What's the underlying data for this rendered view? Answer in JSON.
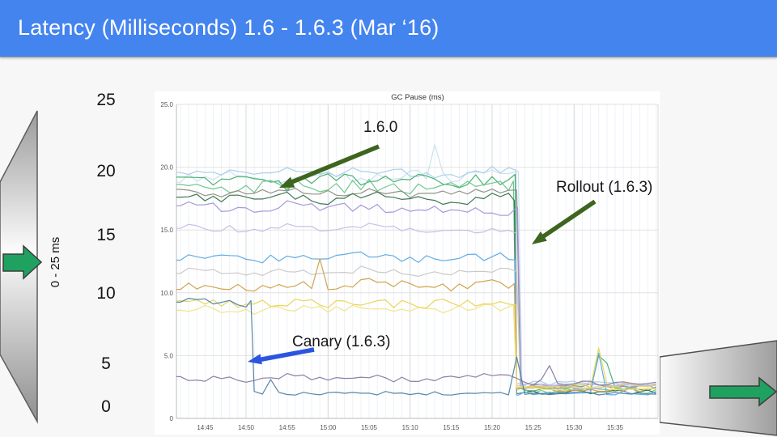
{
  "slide": {
    "title": "Latency (Milliseconds) 1.6 - 1.6.3 (Mar ‘16)"
  },
  "colors": {
    "header_bg": "#4484ef",
    "header_text": "#ffffff",
    "annotation_green": "#3e651f",
    "annotation_blue": "#2b55e0",
    "shape_arrow_green": "#1fa260",
    "shape_arrow_border": "#3c3c3c"
  },
  "scale": {
    "rotated_label": "0 - 25 ms",
    "labels": [
      "25",
      "20",
      "15",
      "10",
      "5",
      "0"
    ]
  },
  "annotations": {
    "v160": "1.6.0",
    "rollout": "Rollout (1.6.3)",
    "canary": "Canary (1.6.3)"
  },
  "chart_data": {
    "type": "line",
    "title": "GC Pause (ms)",
    "xlabel": "",
    "ylabel": "",
    "ylim": [
      0,
      25
    ],
    "grid": true,
    "legend": "none",
    "x_ticks": [
      "14:45",
      "14:50",
      "14:55",
      "15:00",
      "15:05",
      "15:10",
      "15:15",
      "15:20",
      "15:25",
      "15:30",
      "15:35"
    ],
    "x_tick_minutes": [
      3,
      8,
      13,
      18,
      23,
      28,
      33,
      38,
      43,
      48,
      53
    ],
    "y_ticks": [
      "25.0",
      "20.0",
      "15.0",
      "10.0",
      "5.0",
      "0"
    ],
    "y_tick_values": [
      25,
      20,
      15,
      10,
      5,
      0
    ],
    "events": {
      "canary_drop_time": "14:51",
      "rollout_drop_time": "15:23"
    },
    "series": [
      {
        "name": "pale-blue-1",
        "color": "#c9dfef",
        "values": [
          19.2,
          19.5,
          18.9,
          19.4,
          19.0,
          19.6,
          19.2,
          19.4,
          2.6,
          2.5,
          2.6
        ],
        "drop_t": 41.2,
        "post": 2.6,
        "amp": 0.4,
        "spikes": [
          {
            "t": 31,
            "v": 21.8
          }
        ]
      },
      {
        "name": "light-blue-2",
        "color": "#a5cde9",
        "values": [
          19.7,
          19.4,
          19.8,
          19.5,
          19.9,
          19.6,
          19.4,
          19.8,
          2.8,
          2.7,
          2.8
        ],
        "drop_t": 40.9,
        "post": 2.8,
        "amp": 0.35,
        "spikes": []
      },
      {
        "name": "green-1",
        "color": "#3fae68",
        "values": [
          18.9,
          19.2,
          18.6,
          19.1,
          18.8,
          19.3,
          18.7,
          19.1,
          2.3,
          2.2,
          2.3
        ],
        "drop_t": 40.8,
        "post": 2.3,
        "amp": 0.5,
        "spikes": [
          {
            "t": 51,
            "v": 5.0
          },
          {
            "t": 52,
            "v": 4.4
          }
        ]
      },
      {
        "name": "green-2",
        "color": "#69c38a",
        "values": [
          18.4,
          18.2,
          18.7,
          18.3,
          18.6,
          18.2,
          18.8,
          18.4,
          2.2,
          2.3,
          2.2
        ],
        "drop_t": 40.6,
        "post": 2.2,
        "amp": 0.5,
        "spikes": []
      },
      {
        "name": "gray-olive",
        "color": "#8d8d82",
        "values": [
          18.0,
          17.8,
          18.2,
          17.9,
          18.1,
          17.8,
          18.0,
          18.2,
          2.6,
          2.5,
          2.6
        ],
        "drop_t": 41.0,
        "post": 2.6,
        "amp": 0.3,
        "spikes": []
      },
      {
        "name": "dark-green",
        "color": "#38714b",
        "values": [
          17.6,
          17.4,
          17.7,
          17.3,
          17.8,
          17.5,
          17.2,
          17.6,
          2.1,
          2.0,
          2.1
        ],
        "drop_t": 40.7,
        "post": 2.1,
        "amp": 0.35,
        "spikes": []
      },
      {
        "name": "purple",
        "color": "#a292d6",
        "values": [
          16.9,
          16.6,
          17.0,
          16.7,
          16.9,
          16.5,
          16.8,
          16.5,
          2.5,
          2.4,
          2.5
        ],
        "drop_t": 41.1,
        "post": 2.5,
        "amp": 0.35,
        "spikes": []
      },
      {
        "name": "lavender",
        "color": "#c8b9e8",
        "values": [
          15.2,
          15.0,
          15.3,
          15.1,
          15.4,
          15.0,
          15.2,
          14.9,
          2.7,
          2.6,
          2.7
        ],
        "drop_t": 40.9,
        "post": 2.7,
        "amp": 0.3,
        "spikes": []
      },
      {
        "name": "blue",
        "color": "#58a8e4",
        "values": [
          12.8,
          12.6,
          12.9,
          12.7,
          13.0,
          12.6,
          12.8,
          12.9,
          2.0,
          1.9,
          2.0
        ],
        "drop_t": 40.8,
        "post": 2.0,
        "amp": 0.35,
        "spikes": [
          {
            "t": 51,
            "v": 5.2
          }
        ]
      },
      {
        "name": "silver",
        "color": "#c7c7c7",
        "values": [
          11.7,
          11.5,
          11.8,
          11.6,
          11.9,
          11.5,
          11.7,
          11.8,
          2.5,
          2.4,
          2.5
        ],
        "drop_t": 41.0,
        "post": 2.5,
        "amp": 0.3,
        "spikes": []
      },
      {
        "name": "gold",
        "color": "#cda043",
        "values": [
          10.6,
          10.4,
          10.7,
          10.5,
          10.8,
          10.6,
          10.4,
          10.7,
          2.3,
          2.4,
          2.3
        ],
        "drop_t": 40.7,
        "post": 2.3,
        "amp": 0.35,
        "spikes": [
          {
            "t": 17,
            "v": 12.7
          }
        ]
      },
      {
        "name": "yellow-1",
        "color": "#e9d34f",
        "values": [
          9.2,
          9.0,
          9.3,
          9.1,
          9.4,
          9.0,
          9.2,
          9.3,
          2.6,
          2.5,
          2.6
        ],
        "drop_t": 40.9,
        "post": 2.6,
        "amp": 0.35,
        "spikes": [
          {
            "t": 51,
            "v": 5.6
          }
        ]
      },
      {
        "name": "yellow-2",
        "color": "#f1e286",
        "values": [
          8.7,
          8.5,
          8.8,
          8.6,
          8.9,
          8.5,
          8.7,
          8.8,
          2.4,
          2.3,
          2.4
        ],
        "drop_t": 40.6,
        "post": 2.4,
        "amp": 0.3,
        "spikes": []
      },
      {
        "name": "canary-steel-blue",
        "color": "#4e80a4",
        "values": [
          9.3,
          9.1,
          2.0,
          1.9,
          2.1,
          2.0,
          1.9,
          2.0,
          1.8,
          1.9,
          1.8
        ],
        "drop_t": 8.6,
        "post": 2.0,
        "amp": 0.3,
        "spikes": [
          {
            "t": 11,
            "v": 3.1
          },
          {
            "t": 41,
            "v": 4.9
          }
        ]
      },
      {
        "name": "dark-purple",
        "color": "#86789f",
        "values": [
          3.2,
          3.0,
          3.4,
          3.1,
          3.3,
          3.0,
          3.2,
          3.4,
          2.9,
          2.8,
          2.9
        ],
        "drop_t": null,
        "post": null,
        "amp": 0.25,
        "spikes": [
          {
            "t": 45,
            "v": 4.2
          }
        ]
      }
    ]
  }
}
